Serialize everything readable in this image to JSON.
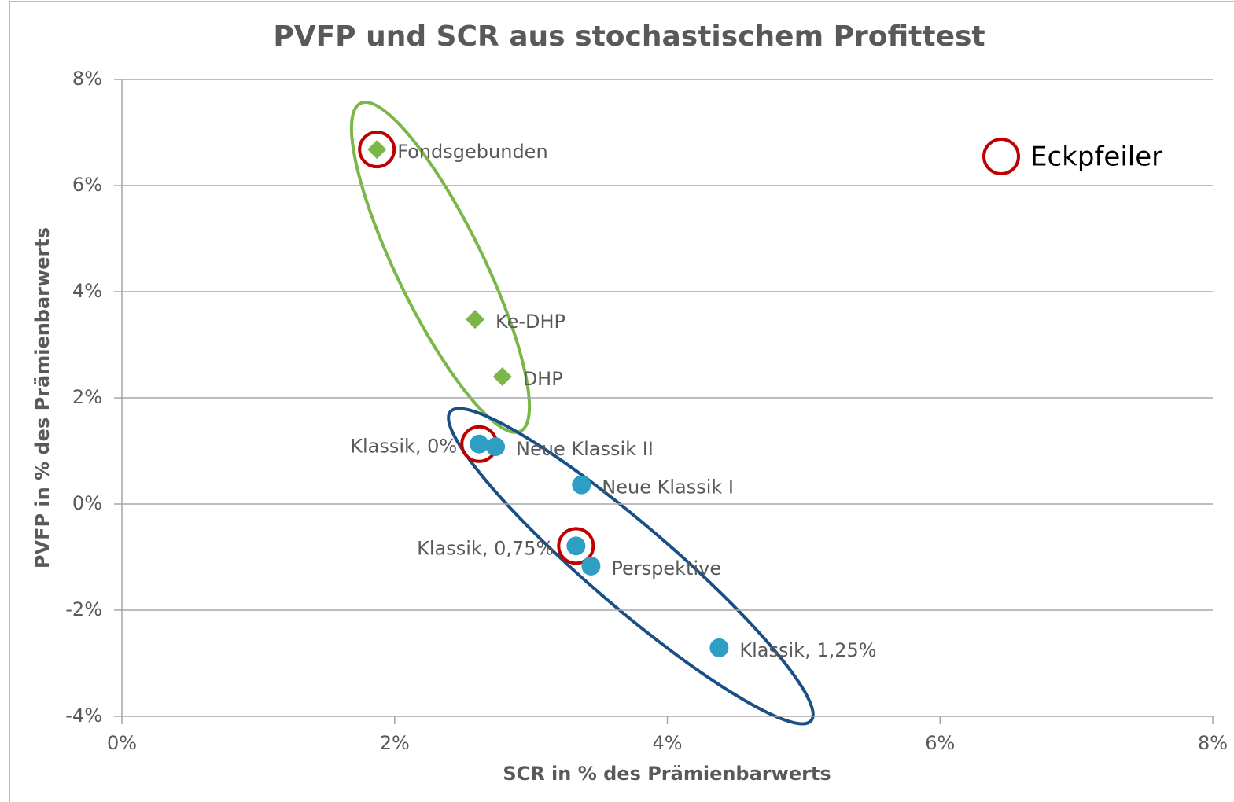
{
  "chart_data": {
    "type": "scatter",
    "title": "PVFP und SCR aus stochastischem Profittest",
    "x_label": "SCR in % des Prämienbarwerts",
    "y_label": "PVFP in % des Prämienbarwerts",
    "legend": "Eckpfeiler",
    "xlim": [
      0,
      8
    ],
    "ylim": [
      -4,
      8
    ],
    "xticks": [
      {
        "value": 0,
        "label": "0%"
      },
      {
        "value": 2,
        "label": "2%"
      },
      {
        "value": 4,
        "label": "4%"
      },
      {
        "value": 6,
        "label": "6%"
      },
      {
        "value": 8,
        "label": "8%"
      }
    ],
    "yticks": [
      {
        "value": -4,
        "label": "-4%"
      },
      {
        "value": -2,
        "label": "-2%"
      },
      {
        "value": 0,
        "label": "0%"
      },
      {
        "value": 2,
        "label": "2%"
      },
      {
        "value": 4,
        "label": "4%"
      },
      {
        "value": 6,
        "label": "6%"
      },
      {
        "value": 8,
        "label": "8%"
      }
    ],
    "grid": true,
    "series": [
      {
        "color": "#7ab648",
        "marker": "diamond",
        "labels": [
          "Fondsgebunden",
          "Ke-DHP",
          "DHP"
        ],
        "x": [
          1.87,
          2.59,
          2.79
        ],
        "values": [
          6.68,
          3.48,
          2.4
        ]
      },
      {
        "color": "#2e9ec4",
        "marker": "circle",
        "labels": [
          "Klassik, 0%",
          "Neue Klassik II",
          "Neue Klassik I",
          "Klassik, 0,75%",
          "Perspektive",
          "Klassik, 1,25%"
        ],
        "x": [
          2.62,
          2.74,
          3.37,
          3.33,
          3.44,
          4.38
        ],
        "values": [
          1.13,
          1.08,
          0.36,
          -0.79,
          -1.17,
          -2.71
        ]
      }
    ]
  }
}
